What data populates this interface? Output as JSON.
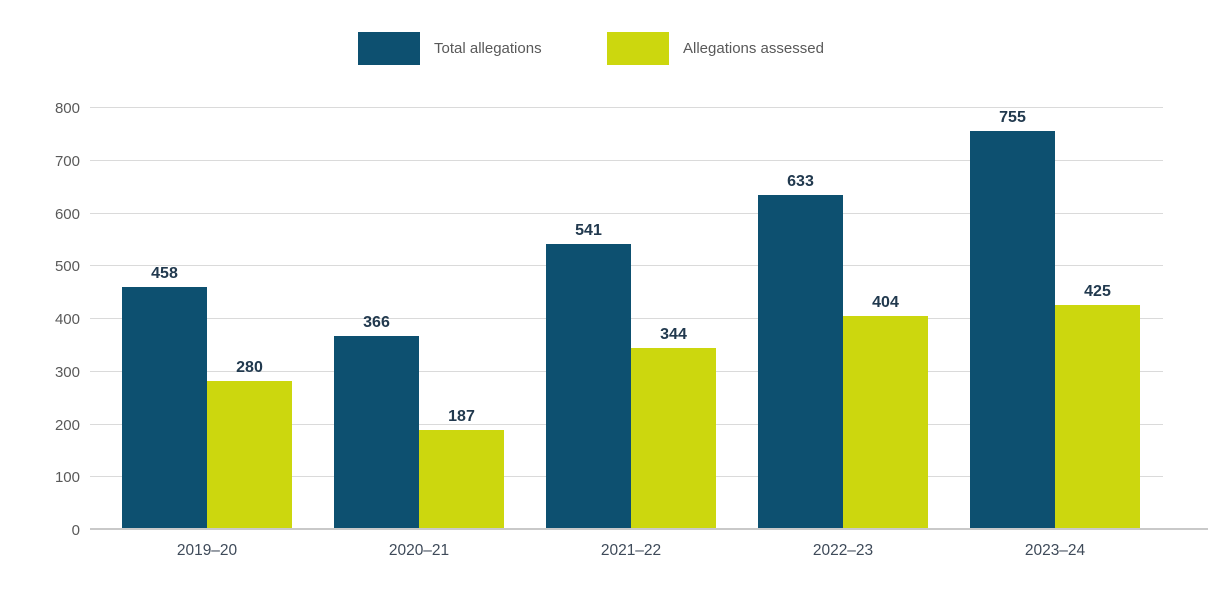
{
  "colors": {
    "series1": "#0d5070",
    "series2": "#ccd70e",
    "gridline": "#dadada",
    "axis_line": "#c9c9c9",
    "tick_label": "#595959",
    "x_label": "#3e4a59",
    "data_label": "#21394e",
    "legend_text": "#595959",
    "background": "#ffffff"
  },
  "legend": {
    "position": "top",
    "items": [
      {
        "label": "Total allegations",
        "color": "#0d5070"
      },
      {
        "label": "Allegations assessed",
        "color": "#ccd70e"
      }
    ]
  },
  "chart_data": {
    "type": "bar",
    "categories": [
      "2019–20",
      "2020–21",
      "2021–22",
      "2022–23",
      "2023–24"
    ],
    "series": [
      {
        "name": "Total allegations",
        "color": "#0d5070",
        "values": [
          458,
          366,
          541,
          633,
          755
        ]
      },
      {
        "name": "Allegations assessed",
        "color": "#ccd70e",
        "values": [
          280,
          187,
          344,
          404,
          425
        ]
      }
    ],
    "title": "",
    "xlabel": "",
    "ylabel": "",
    "ylim": [
      0,
      800
    ],
    "ytick_step": 100,
    "ytick_labels": [
      "0",
      "100",
      "200",
      "300",
      "400",
      "500",
      "600",
      "700",
      "800"
    ],
    "grid": true,
    "legend_position": "top",
    "data_labels": true
  }
}
